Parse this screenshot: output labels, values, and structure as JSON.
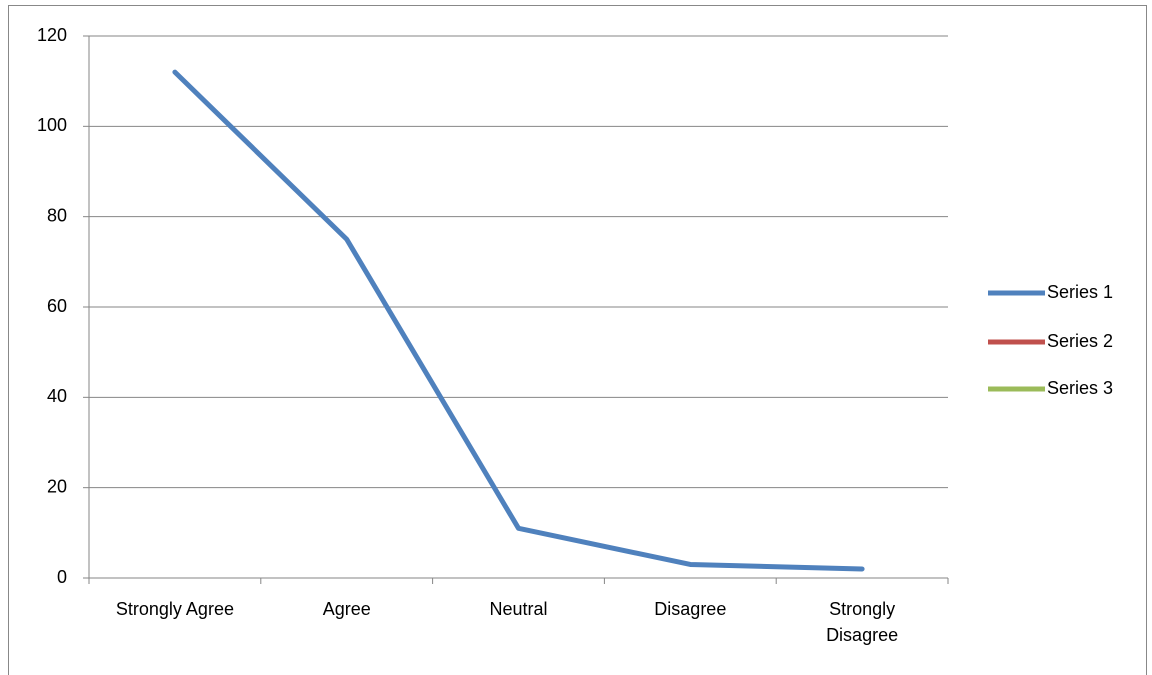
{
  "chart_data": {
    "type": "line",
    "categories": [
      "Strongly Agree",
      "Agree",
      "Neutral",
      "Disagree",
      "Strongly Disagree"
    ],
    "series": [
      {
        "name": "Series 1",
        "color": "#4f81bd",
        "values": [
          112,
          75,
          11,
          3,
          2
        ]
      },
      {
        "name": "Series 2",
        "color": "#c0504d",
        "values": [
          null,
          null,
          null,
          null,
          null
        ]
      },
      {
        "name": "Series 3",
        "color": "#9bbb59",
        "values": [
          null,
          null,
          null,
          null,
          null
        ]
      }
    ],
    "ylim": [
      0,
      120
    ],
    "yticks": [
      0,
      20,
      40,
      60,
      80,
      100,
      120
    ],
    "grid": true,
    "legend": "right"
  }
}
